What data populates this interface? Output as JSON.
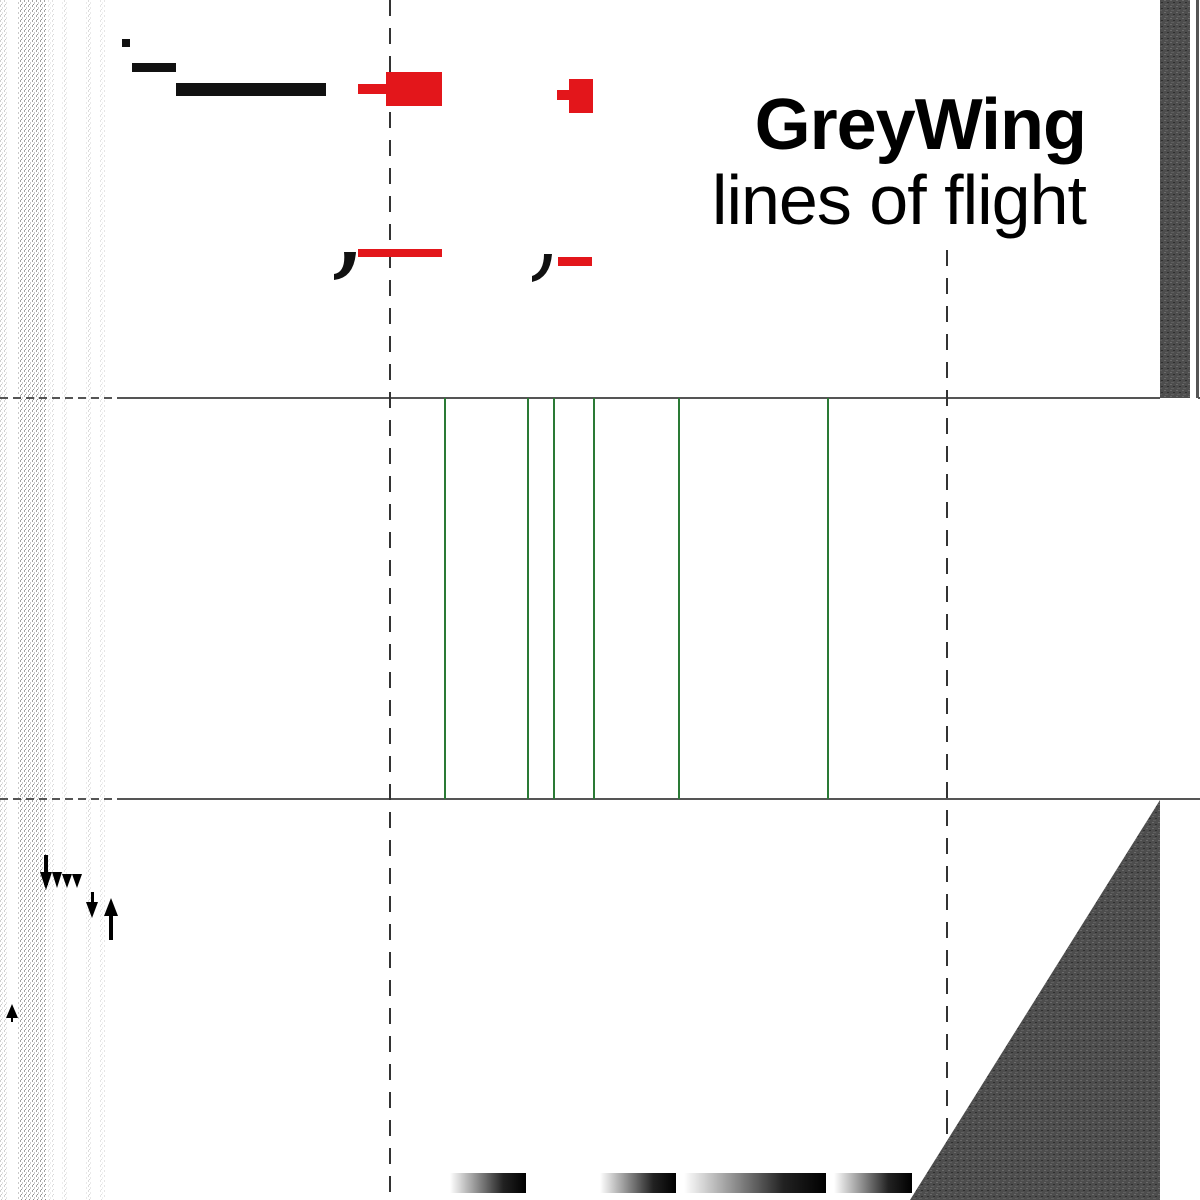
{
  "cover": {
    "artist": "GreyWing",
    "album": "lines of flight"
  },
  "colors": {
    "background": "#ffffff",
    "ink": "#000000",
    "accent_red": "#e3161b",
    "green_lines": "#2a7a35",
    "grey_panel": "#4a4a4a",
    "rule": "#555555"
  }
}
